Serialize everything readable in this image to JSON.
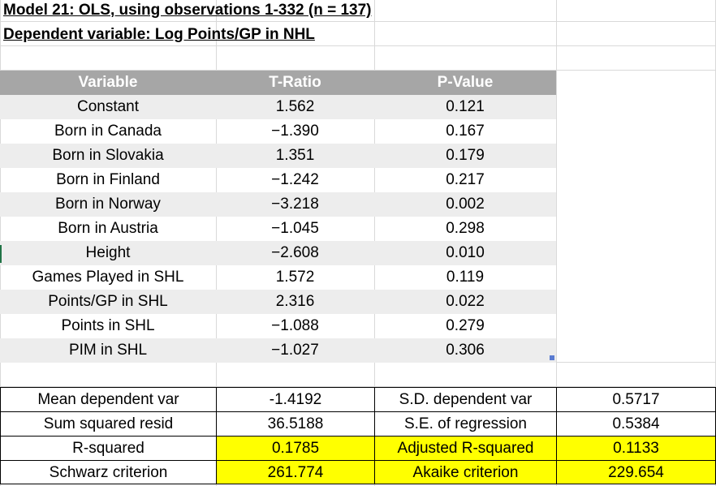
{
  "title1": "Model 21: OLS, using observations 1-332 (n = 137)",
  "title2": "Dependent variable: Log Points/GP in NHL",
  "table": {
    "headers": [
      "Variable",
      "T-Ratio",
      "P-Value"
    ],
    "rows": [
      [
        "Constant",
        "1.562",
        "0.121"
      ],
      [
        "Born in Canada",
        "−1.390",
        "0.167"
      ],
      [
        "Born in Slovakia",
        "1.351",
        "0.179"
      ],
      [
        "Born in Finland",
        "−1.242",
        "0.217"
      ],
      [
        "Born in Norway",
        "−3.218",
        "0.002"
      ],
      [
        "Born in Austria",
        "−1.045",
        "0.298"
      ],
      [
        "Height",
        "−2.608",
        "0.010"
      ],
      [
        "Games Played in SHL",
        "1.572",
        "0.119"
      ],
      [
        "Points/GP in SHL",
        "2.316",
        "0.022"
      ],
      [
        "Points in SHL",
        "−1.088",
        "0.279"
      ],
      [
        "PIM in SHL",
        "−1.027",
        "0.306"
      ]
    ]
  },
  "stats": [
    [
      "Mean dependent var",
      "-1.4192",
      "S.D. dependent var",
      "0.5717"
    ],
    [
      "Sum squared resid",
      "36.5188",
      "S.E. of regression",
      "0.5384"
    ],
    [
      "R-squared",
      "0.1785",
      "Adjusted R-squared",
      "0.1133"
    ],
    [
      "Schwarz criterion",
      "261.774",
      "Akaike criterion",
      "229.654"
    ]
  ],
  "colors": {
    "header_bg": "#a6a6a6",
    "band_bg": "#ededed",
    "highlight": "#ffff00"
  }
}
